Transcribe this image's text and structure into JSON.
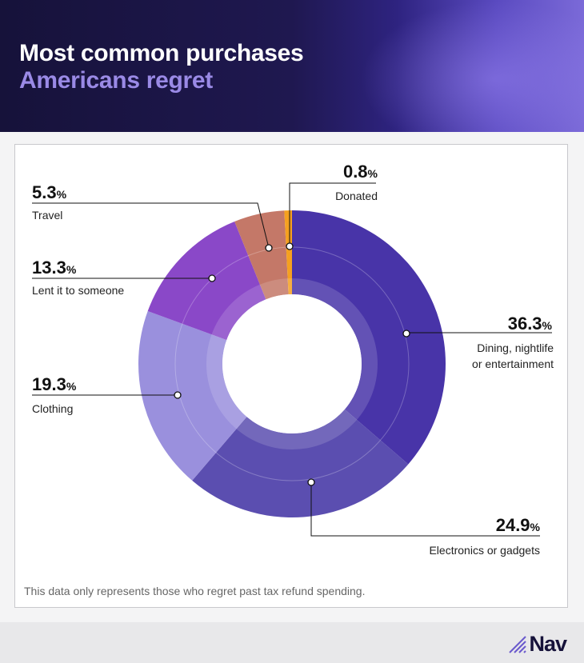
{
  "header": {
    "title_line1": "Most common purchases",
    "title_line2": "Americans regret"
  },
  "chart_data": {
    "type": "pie",
    "donut": true,
    "unit": "%",
    "slices": [
      {
        "label": "Dining, nightlife or entertainment",
        "value": 36.3,
        "color": "#4834a8"
      },
      {
        "label": "Electronics or gadgets",
        "value": 24.9,
        "color": "#5b4eb0"
      },
      {
        "label": "Clothing",
        "value": 19.3,
        "color": "#9a90dd"
      },
      {
        "label": "Lent it to someone",
        "value": 13.3,
        "color": "#8a48c8"
      },
      {
        "label": "Travel",
        "value": 5.3,
        "color": "#c47868"
      },
      {
        "label": "Donated",
        "value": 0.8,
        "color": "#f5a020"
      }
    ]
  },
  "labels": {
    "dining": {
      "value": "36.3",
      "line1": "Dining, nightlife",
      "line2": "or entertainment"
    },
    "electronics": {
      "value": "24.9",
      "line1": "Electronics or gadgets"
    },
    "clothing": {
      "value": "19.3",
      "line1": "Clothing"
    },
    "lent": {
      "value": "13.3",
      "line1": "Lent it to someone"
    },
    "travel": {
      "value": "5.3",
      "line1": "Travel"
    },
    "donated": {
      "value": "0.8",
      "line1": "Donated"
    },
    "unit": "%"
  },
  "note": "This data only represents those who regret past tax refund spending.",
  "brand": "Nav"
}
